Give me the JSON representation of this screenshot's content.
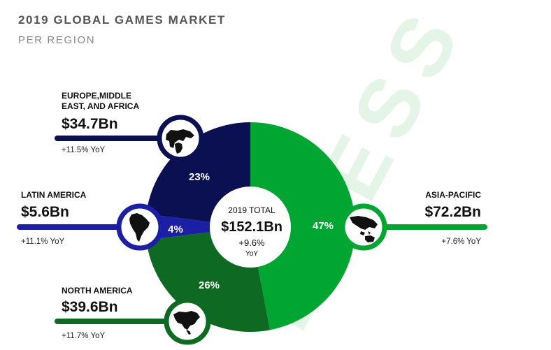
{
  "header": {
    "title": "2019 GLOBAL GAMES MARKET",
    "subtitle": "PER REGION"
  },
  "watermark": "DRESS",
  "center": {
    "label": "2019 TOTAL",
    "value": "$152.1Bn",
    "growth": "+9.6%",
    "yoy": "YoY"
  },
  "chart_data": {
    "type": "pie",
    "categories": [
      "Asia-Pacific",
      "North America",
      "Latin America",
      "Europe, Middle East, and Africa"
    ],
    "values": [
      47,
      26,
      4,
      23
    ],
    "revenue_bn": [
      72.2,
      39.6,
      5.6,
      34.7
    ],
    "total_bn": 152.1,
    "donut": true
  },
  "segments": [
    {
      "key": "apac",
      "pct_label": "47%",
      "color": "#00a532"
    },
    {
      "key": "na",
      "pct_label": "26%",
      "color": "#0e6a23"
    },
    {
      "key": "latam",
      "pct_label": "4%",
      "color": "#1c1fa3"
    },
    {
      "key": "emea",
      "pct_label": "23%",
      "color": "#0a1052"
    }
  ],
  "regions": {
    "emea": {
      "name_line1": "EUROPE,MIDDLE",
      "name_line2": "EAST, AND AFRICA",
      "value": "$34.7Bn",
      "growth": "+11.5% YoY",
      "icon": "europe-africa-map-icon"
    },
    "latam": {
      "name": "LATIN AMERICA",
      "value": "$5.6Bn",
      "growth": "+11.1% YoY",
      "icon": "south-america-map-icon"
    },
    "na": {
      "name": "NORTH AMERICA",
      "value": "$39.6Bn",
      "growth": "+11.7% YoY",
      "icon": "north-america-map-icon"
    },
    "apac": {
      "name": "ASIA-PACIFIC",
      "value": "$72.2Bn",
      "growth": "+7.6% YoY",
      "icon": "asia-pacific-map-icon"
    }
  }
}
